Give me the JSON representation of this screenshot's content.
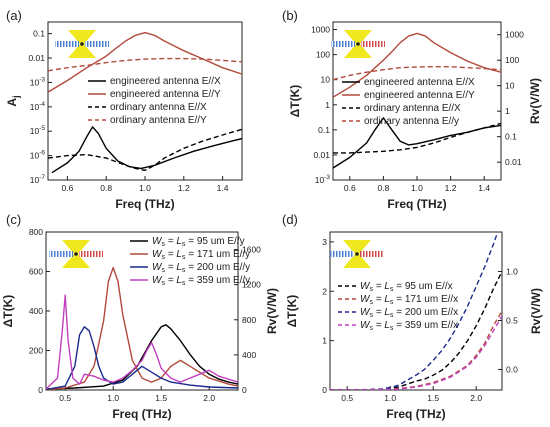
{
  "chart_data": [
    {
      "panel": "(a)",
      "type": "line",
      "xlabel": "Freq (THz)",
      "ylabel": "A_j",
      "xlim": [
        0.5,
        1.5
      ],
      "ylim": [
        1e-07,
        0.3
      ],
      "yscale": "log",
      "xticks": [
        "0.6",
        "0.8",
        "1.0",
        "1.2",
        "1.4"
      ],
      "yticks": [
        "10^-7",
        "10^-6",
        "10^-5",
        "10^-4",
        "10^-3",
        "0.01",
        "0.1"
      ],
      "legend": "center-right",
      "series": [
        {
          "name": "engineered antenna E//X",
          "style": "solid",
          "color": "#000000",
          "x": [
            0.52,
            0.6,
            0.66,
            0.7,
            0.73,
            0.76,
            0.8,
            0.86,
            0.92,
            0.98,
            1.05,
            1.15,
            1.25,
            1.35,
            1.45,
            1.5
          ],
          "y": [
            2e-07,
            5e-07,
            1.5e-06,
            6e-06,
            1.5e-05,
            8e-06,
            2e-06,
            6e-07,
            3.5e-07,
            3e-07,
            4e-07,
            8e-07,
            1.5e-06,
            2.5e-06,
            4e-06,
            5e-06
          ]
        },
        {
          "name": "engineered antenna E//Y",
          "style": "solid",
          "color": "#b24a3a",
          "x": [
            0.5,
            0.6,
            0.7,
            0.8,
            0.85,
            0.9,
            0.95,
            1.0,
            1.05,
            1.1,
            1.2,
            1.3,
            1.4,
            1.5
          ],
          "y": [
            0.0004,
            0.0012,
            0.004,
            0.012,
            0.025,
            0.05,
            0.085,
            0.11,
            0.085,
            0.05,
            0.02,
            0.009,
            0.004,
            0.0022
          ]
        },
        {
          "name": "ordinary antenna E//X",
          "style": "dashed",
          "color": "#000000",
          "x": [
            0.5,
            0.6,
            0.7,
            0.8,
            0.9,
            0.95,
            1.0,
            1.05,
            1.1,
            1.2,
            1.3,
            1.4,
            1.5
          ],
          "y": [
            8e-07,
            1e-06,
            1.1e-06,
            8e-07,
            4e-07,
            3e-07,
            2.5e-07,
            4e-07,
            8e-07,
            2e-06,
            4e-06,
            7e-06,
            1.2e-05
          ]
        },
        {
          "name": "ordinary antenna E//Y",
          "style": "dashed",
          "color": "#b24a3a",
          "x": [
            0.5,
            0.6,
            0.7,
            0.8,
            0.9,
            1.0,
            1.1,
            1.2,
            1.3,
            1.4,
            1.5
          ],
          "y": [
            0.003,
            0.004,
            0.005,
            0.0065,
            0.008,
            0.009,
            0.0095,
            0.0095,
            0.009,
            0.008,
            0.007
          ]
        }
      ]
    },
    {
      "panel": "(b)",
      "type": "line",
      "xlabel": "Freq (THz)",
      "ylabel": "ΔT(K)",
      "ylabel_right": "Rv(V/W)",
      "xlim": [
        0.5,
        1.5
      ],
      "ylim": [
        0.001,
        2000
      ],
      "yscale": "log",
      "xticks": [
        "0.6",
        "0.8",
        "1.0",
        "1.2",
        "1.4"
      ],
      "yticks": [
        "10^-3",
        "0.01",
        "0.1",
        "1",
        "10",
        "100",
        "1000"
      ],
      "yticks_right": [
        "0.01",
        "0.1",
        "1",
        "10",
        "100",
        "1000"
      ],
      "legend": "center-right",
      "series": [
        {
          "name": "engineered antenna E//X",
          "style": "solid",
          "color": "#000000",
          "x": [
            0.5,
            0.6,
            0.7,
            0.75,
            0.8,
            0.85,
            0.9,
            0.95,
            1.0,
            1.1,
            1.2,
            1.3,
            1.4,
            1.5
          ],
          "y": [
            0.003,
            0.008,
            0.03,
            0.1,
            0.3,
            0.1,
            0.035,
            0.025,
            0.028,
            0.04,
            0.06,
            0.08,
            0.12,
            0.15
          ]
        },
        {
          "name": "engineered antenna E//Y",
          "style": "solid",
          "color": "#b24a3a",
          "x": [
            0.5,
            0.6,
            0.7,
            0.8,
            0.85,
            0.9,
            0.95,
            1.0,
            1.05,
            1.1,
            1.2,
            1.3,
            1.4,
            1.5
          ],
          "y": [
            2,
            5,
            15,
            60,
            130,
            300,
            550,
            700,
            550,
            300,
            120,
            55,
            30,
            20
          ]
        },
        {
          "name": "ordinary antenna E//X",
          "style": "dashed",
          "color": "#000000",
          "x": [
            0.5,
            0.6,
            0.7,
            0.8,
            0.9,
            1.0,
            1.1,
            1.2,
            1.3,
            1.4,
            1.5
          ],
          "y": [
            0.012,
            0.012,
            0.013,
            0.014,
            0.016,
            0.02,
            0.03,
            0.05,
            0.08,
            0.12,
            0.18
          ]
        },
        {
          "name": "ordinary antenna E//y",
          "style": "dashed",
          "color": "#b24a3a",
          "x": [
            0.5,
            0.6,
            0.7,
            0.8,
            0.9,
            1.0,
            1.1,
            1.2,
            1.3,
            1.4,
            1.5
          ],
          "y": [
            10,
            15,
            20,
            25,
            30,
            32,
            33,
            33,
            30,
            28,
            25
          ]
        }
      ]
    },
    {
      "panel": "(c)",
      "type": "line",
      "xlabel": "Freq (THz)",
      "ylabel": "ΔT(K)",
      "ylabel_right": "Rv(V/W)",
      "xlim": [
        0.3,
        2.3
      ],
      "ylim": [
        0,
        800
      ],
      "ylim_right": [
        0,
        1800
      ],
      "xticks": [
        "0.5",
        "1.0",
        "1.5",
        "2.0"
      ],
      "yticks": [
        "0",
        "200",
        "400",
        "600",
        "800"
      ],
      "yticks_right": [
        "0",
        "400",
        "800",
        "1200",
        "1600"
      ],
      "legend": "top-right",
      "series": [
        {
          "name": "W",
          "sub": "s",
          "eq": "= L",
          "sub2": "s",
          "tail": "= 95 um E//y",
          "style": "solid",
          "color": "#000000",
          "x": [
            0.3,
            0.6,
            0.9,
            1.1,
            1.25,
            1.4,
            1.5,
            1.55,
            1.6,
            1.7,
            1.8,
            1.9,
            2.0,
            2.1,
            2.2,
            2.3
          ],
          "y": [
            5,
            10,
            20,
            50,
            120,
            250,
            320,
            330,
            310,
            250,
            180,
            120,
            80,
            55,
            40,
            30
          ]
        },
        {
          "name": "W",
          "sub": "s",
          "eq": "= L",
          "sub2": "s",
          "tail": "= 171 um E//y",
          "style": "solid",
          "color": "#b24a3a",
          "x": [
            0.3,
            0.5,
            0.7,
            0.8,
            0.9,
            0.95,
            1.0,
            1.05,
            1.1,
            1.2,
            1.3,
            1.4,
            1.5,
            1.6,
            1.7,
            1.8,
            2.0,
            2.2,
            2.3
          ],
          "y": [
            2,
            10,
            40,
            120,
            350,
            550,
            620,
            550,
            380,
            150,
            60,
            40,
            60,
            120,
            150,
            120,
            60,
            30,
            20
          ]
        },
        {
          "name": "W",
          "sub": "s",
          "eq": "= L",
          "sub2": "s",
          "tail": "= 200 um E//y",
          "style": "solid",
          "color": "#1a2a8c",
          "x": [
            0.3,
            0.5,
            0.6,
            0.65,
            0.7,
            0.75,
            0.8,
            0.85,
            0.9,
            1.0,
            1.1,
            1.2,
            1.3,
            1.4,
            1.5,
            1.6,
            1.8,
            2.0,
            2.3
          ],
          "y": [
            3,
            20,
            120,
            280,
            320,
            300,
            220,
            120,
            60,
            30,
            40,
            80,
            120,
            90,
            60,
            40,
            25,
            15,
            10
          ]
        },
        {
          "name": "W",
          "sub": "s",
          "eq": "= L",
          "sub2": "s",
          "tail": "= 359 um E//y",
          "style": "solid",
          "color": "#c040c0",
          "x": [
            0.3,
            0.42,
            0.47,
            0.5,
            0.53,
            0.58,
            0.65,
            0.7,
            0.8,
            0.9,
            1.0,
            1.1,
            1.2,
            1.3,
            1.35,
            1.4,
            1.45,
            1.5,
            1.6,
            1.7,
            1.8,
            1.9,
            2.0,
            2.1,
            2.3
          ],
          "y": [
            5,
            60,
            300,
            480,
            250,
            60,
            30,
            80,
            70,
            50,
            40,
            60,
            100,
            150,
            200,
            240,
            180,
            110,
            60,
            40,
            60,
            80,
            100,
            70,
            40
          ]
        }
      ]
    },
    {
      "panel": "(d)",
      "type": "line",
      "xlabel": "Freq (THz)",
      "ylabel": "ΔT(K)",
      "ylabel_right": "Rv(V/W)",
      "xlim": [
        0.3,
        2.3
      ],
      "ylim": [
        0,
        3.2
      ],
      "xticks": [
        "0.5",
        "1.0",
        "1.5",
        "2.0"
      ],
      "yticks": [
        "0",
        "1",
        "2",
        "3"
      ],
      "yticks_right": [
        "0.0",
        "0.5",
        "1.0"
      ],
      "legend": "upper-left",
      "series": [
        {
          "name": "W",
          "sub": "s",
          "eq": "= L",
          "sub2": "s",
          "tail": "= 95 um E//x",
          "style": "dashed",
          "color": "#000000",
          "x": [
            0.3,
            0.6,
            0.9,
            1.0,
            1.1,
            1.2,
            1.3,
            1.4,
            1.5,
            1.6,
            1.7,
            1.8,
            1.9,
            2.0,
            2.1,
            2.2,
            2.3
          ],
          "y": [
            0,
            0,
            0.01,
            0.03,
            0.06,
            0.12,
            0.18,
            0.22,
            0.3,
            0.4,
            0.55,
            0.75,
            1.0,
            1.3,
            1.65,
            2.05,
            2.4
          ]
        },
        {
          "name": "W",
          "sub": "s",
          "eq": "= L",
          "sub2": "s",
          "tail": "= 171 um E//x",
          "style": "dashed",
          "color": "#b24a3a",
          "x": [
            0.3,
            0.6,
            0.9,
            1.1,
            1.3,
            1.5,
            1.7,
            1.9,
            2.0,
            2.1,
            2.2,
            2.3
          ],
          "y": [
            0,
            0,
            0.01,
            0.03,
            0.07,
            0.15,
            0.28,
            0.5,
            0.7,
            0.95,
            1.3,
            1.6
          ]
        },
        {
          "name": "W",
          "sub": "s",
          "eq": "= L",
          "sub2": "s",
          "tail": "= 200 um E//x",
          "style": "dashed",
          "color": "#1a2a8c",
          "x": [
            0.3,
            0.6,
            0.9,
            1.0,
            1.1,
            1.2,
            1.3,
            1.4,
            1.5,
            1.6,
            1.7,
            1.8,
            1.9,
            2.0,
            2.1,
            2.2,
            2.25
          ],
          "y": [
            0,
            0,
            0.02,
            0.05,
            0.1,
            0.2,
            0.3,
            0.42,
            0.6,
            0.8,
            1.05,
            1.35,
            1.7,
            2.1,
            2.5,
            2.95,
            3.2
          ]
        },
        {
          "name": "W",
          "sub": "s",
          "eq": "= L",
          "sub2": "s",
          "tail": "= 359 um E//x",
          "style": "dashed",
          "color": "#c040c0",
          "x": [
            0.3,
            0.6,
            0.9,
            1.1,
            1.3,
            1.5,
            1.7,
            1.9,
            2.0,
            2.1,
            2.2,
            2.3
          ],
          "y": [
            0,
            0,
            0.01,
            0.02,
            0.06,
            0.13,
            0.26,
            0.48,
            0.66,
            0.9,
            1.2,
            1.5
          ]
        }
      ]
    }
  ]
}
